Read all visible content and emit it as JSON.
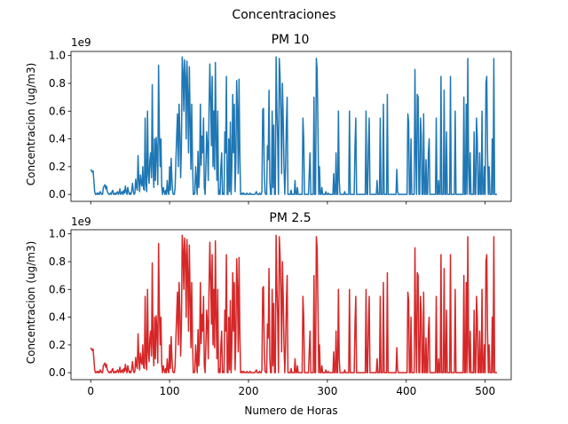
{
  "figure": {
    "suptitle": "Concentraciones"
  },
  "chart_data": [
    {
      "type": "line",
      "title": "PM 10",
      "xlabel": "",
      "ylabel": "Concentracion (ug/m3)",
      "y_offset_label": "1e9",
      "ylim": [
        -0.05,
        1.03
      ],
      "xlim": [
        -25,
        533
      ],
      "xticks": [
        0,
        100,
        200,
        300,
        400,
        500
      ],
      "yticks": [
        0.0,
        0.2,
        0.4,
        0.6,
        0.8,
        1.0
      ],
      "ytick_labels": [
        "0.0",
        "0.2",
        "0.4",
        "0.6",
        "0.8",
        "1.0"
      ],
      "show_xtick_labels": false,
      "color": "#1f77b4",
      "series": [
        {
          "values": [
            0.18,
            0.17,
            0.16,
            0.17,
            0.1,
            0.02,
            0.0,
            0.0,
            0.01,
            0.0,
            0.01,
            0.0,
            0.02,
            0.01,
            0.0,
            0.0,
            0.05,
            0.06,
            0.07,
            0.04,
            0.06,
            0.02,
            0.01,
            0.0,
            0.0,
            0.01,
            0.0,
            0.02,
            0.03,
            0.0,
            0.0,
            0.01,
            0.0,
            0.01,
            0.02,
            0.0,
            0.01,
            0.04,
            0.0,
            0.01,
            0.02,
            0.0,
            0.03,
            0.01,
            0.06,
            0.02,
            0.0,
            0.05,
            0.02,
            0.0,
            0.01,
            0.0,
            0.03,
            0.08,
            0.02,
            0.0,
            0.01,
            0.11,
            0.05,
            0.03,
            0.28,
            0.1,
            0.02,
            0.14,
            0.08,
            0.06,
            0.2,
            0.04,
            0.03,
            0.55,
            0.08,
            0.02,
            0.6,
            0.15,
            0.08,
            0.25,
            0.3,
            0.12,
            0.79,
            0.2,
            0.05,
            0.4,
            0.1,
            0.41,
            0.3,
            0.07,
            0.93,
            0.45,
            0.2,
            0.4,
            0.06,
            0.0,
            0.05,
            0.02,
            0.0,
            0.03,
            0.0,
            0.1,
            0.02,
            0.0,
            0.2,
            0.03,
            0.26,
            0.1,
            0.01,
            0.0,
            0.0,
            0.05,
            0.25,
            0.43,
            0.58,
            0.2,
            0.65,
            0.45,
            0.12,
            0.35,
            0.99,
            0.88,
            0.6,
            0.97,
            0.85,
            0.4,
            0.96,
            0.72,
            0.3,
            0.92,
            0.55,
            0.18,
            0.65,
            0.25,
            0.0,
            0.0,
            0.01,
            0.2,
            0.1,
            0.0,
            0.31,
            0.05,
            0.18,
            0.65,
            0.21,
            0.42,
            0.3,
            0.55,
            0.05,
            0.0,
            0.2,
            0.45,
            0.35,
            0.1,
            0.62,
            0.94,
            0.68,
            0.35,
            0.85,
            0.2,
            0.6,
            0.18,
            0.95,
            0.4,
            0.1,
            0.6,
            0.0,
            0.03,
            0.0,
            0.2,
            0.3,
            0.0,
            0.01,
            0.0,
            0.45,
            0.3,
            0.85,
            0.0,
            0.0,
            0.4,
            0.02,
            0.52,
            0.0,
            0.22,
            0.72,
            0.3,
            0.65,
            0.02,
            0.25,
            0.82,
            0.6,
            0.15,
            0.83,
            0.3,
            0.0,
            0.0,
            0.01,
            0.0,
            0.01,
            0.0,
            0.0,
            0.0,
            0.01,
            0.0,
            0.0,
            0.0,
            0.01,
            0.0,
            0.0,
            0.0,
            0.0,
            0.0,
            0.0,
            0.01,
            0.02,
            0.0,
            0.0,
            0.0,
            0.01,
            0.0,
            0.0,
            0.02,
            0.61,
            0.62,
            0.15,
            0.01,
            0.0,
            0.0,
            0.35,
            0.25,
            0.75,
            0.1,
            0.0,
            0.0,
            0.6,
            0.05,
            0.5,
            0.0,
            0.0,
            0.99,
            0.62,
            0.4,
            0.0,
            0.98,
            0.85,
            0.6,
            0.15,
            0.8,
            0.55,
            0.2,
            0.0,
            0.2,
            0.5,
            0.7,
            0.0,
            0.0,
            0.0,
            0.0,
            0.03,
            0.0,
            0.0,
            0.0,
            0.0,
            0.1,
            0.0,
            0.0,
            0.05,
            0.0,
            0.0,
            0.0,
            0.0,
            0.0,
            0.0,
            0.55,
            0.4,
            0.0,
            0.0,
            0.0,
            0.0,
            0.0,
            0.0,
            0.15,
            0.3,
            0.0,
            0.0,
            0.0,
            0.0,
            0.7,
            0.0,
            0.0,
            0.98,
            0.9,
            0.5,
            0.0,
            0.2,
            0.0,
            0.0,
            0.05,
            0.0,
            0.0,
            0.0,
            0.0,
            0.02,
            0.0,
            0.0,
            0.01,
            0.0,
            0.0,
            0.0,
            0.0,
            0.0,
            0.0,
            0.15,
            0.0,
            0.0,
            0.3,
            0.0,
            0.0,
            0.6,
            0.1,
            0.0,
            0.0,
            0.0,
            0.0,
            0.0,
            0.0,
            0.02,
            0.0,
            0.0,
            0.0,
            0.0,
            0.0,
            0.6,
            0.0,
            0.0,
            0.0,
            0.0,
            0.0,
            0.0,
            0.35,
            0.55,
            0.0,
            0.0,
            0.0,
            0.0,
            0.0,
            0.0,
            0.0,
            0.0,
            0.0,
            0.0,
            0.0,
            0.0,
            0.6,
            0.0,
            0.0,
            0.35,
            0.55,
            0.0,
            0.0,
            0.0,
            0.0,
            0.0,
            0.0,
            0.0,
            0.0,
            0.0,
            0.1,
            0.0,
            0.0,
            0.0,
            0.55,
            0.0,
            0.0,
            0.0,
            0.65,
            0.0,
            0.0,
            0.0,
            0.0,
            0.72,
            0.0,
            0.0,
            0.0,
            0.0,
            0.0,
            0.0,
            0.0,
            0.0,
            0.0,
            0.0,
            0.0,
            0.18,
            0.02,
            0.0,
            0.0,
            0.0,
            0.0,
            0.0,
            0.0,
            0.0,
            0.0,
            0.0,
            0.0,
            0.0,
            0.0,
            0.58,
            0.52,
            0.0,
            0.0,
            0.4,
            0.0,
            0.0,
            0.0,
            0.0,
            0.9,
            0.3,
            0.0,
            0.72,
            0.7,
            0.0,
            0.0,
            0.55,
            0.42,
            0.0,
            0.0,
            0.58,
            0.0,
            0.0,
            0.25,
            0.0,
            0.0,
            0.3,
            0.4,
            0.0,
            0.0,
            0.0,
            0.0,
            0.0,
            0.0,
            0.0,
            0.0,
            0.55,
            0.0,
            0.0,
            0.1,
            0.0,
            0.0,
            0.85,
            0.0,
            0.0,
            0.0,
            0.75,
            0.0,
            0.0,
            0.45,
            0.0,
            0.0,
            0.0,
            0.0,
            0.85,
            0.0,
            0.0,
            0.0,
            0.0,
            0.0,
            0.6,
            0.0,
            0.0,
            0.0,
            0.0,
            0.0,
            0.0,
            0.0,
            0.0,
            0.0,
            0.0,
            0.7,
            0.0,
            0.0,
            0.65,
            0.0,
            0.98,
            0.2,
            0.0,
            0.3,
            0.0,
            0.0,
            0.0,
            0.0,
            0.45,
            0.0,
            0.0,
            0.55,
            0.4,
            0.0,
            0.0,
            0.3,
            0.0,
            0.0,
            0.6,
            0.0,
            0.0,
            0.2,
            0.0,
            0.8,
            0.85,
            0.3,
            0.0,
            0.2,
            0.0,
            0.0,
            0.0,
            0.4,
            0.0,
            0.98,
            0.0,
            0.0,
            0.0,
            0.0
          ]
        }
      ]
    },
    {
      "type": "line",
      "title": "PM 2.5",
      "xlabel": "Numero de Horas",
      "ylabel": "Concentracion (ug/m3)",
      "y_offset_label": "1e9",
      "ylim": [
        -0.05,
        1.03
      ],
      "xlim": [
        -25,
        533
      ],
      "xticks": [
        0,
        100,
        200,
        300,
        400,
        500
      ],
      "xtick_labels": [
        "0",
        "100",
        "200",
        "300",
        "400",
        "500"
      ],
      "yticks": [
        0.0,
        0.2,
        0.4,
        0.6,
        0.8,
        1.0
      ],
      "ytick_labels": [
        "0.0",
        "0.2",
        "0.4",
        "0.6",
        "0.8",
        "1.0"
      ],
      "show_xtick_labels": true,
      "color": "#d62728",
      "series": [
        {
          "values_same_as_panel": 0
        }
      ]
    }
  ]
}
